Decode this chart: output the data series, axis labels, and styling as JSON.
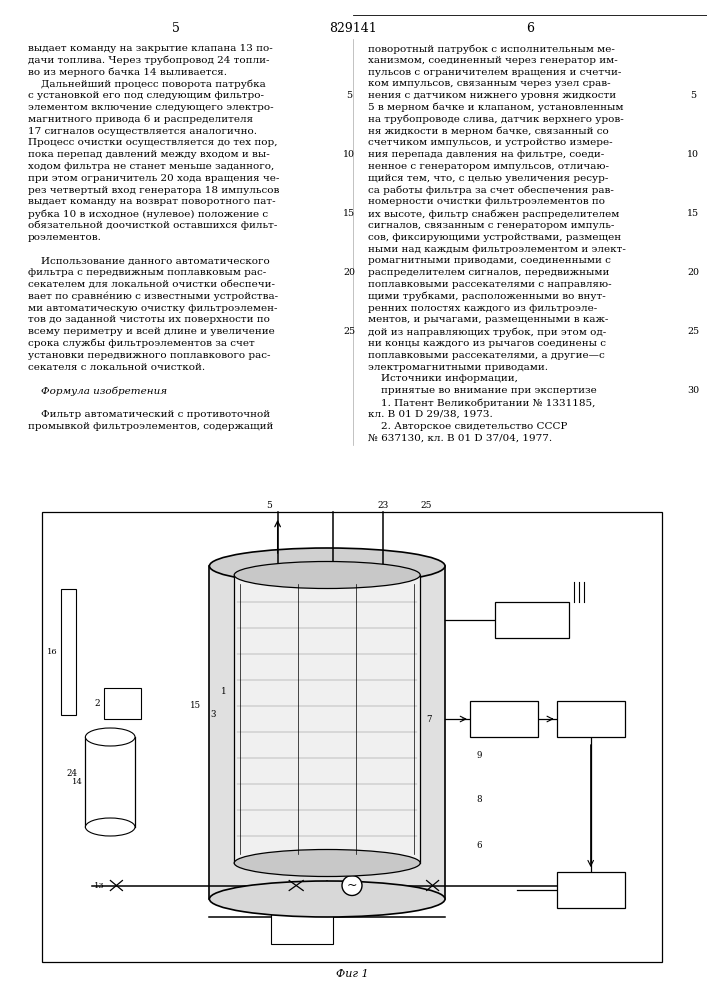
{
  "page_width": 7.07,
  "page_height": 10.0,
  "left_col_lines": [
    "выдает команду на закрытие клапана 13 по-",
    "дачи топлива. Через трубопровод 24 топли-",
    "во из мерного бачка 14 выливается.",
    "    Дальнейший процесс поворота патрубка",
    "с установкой его под следующим фильтро-",
    "элементом включение следующего электро-",
    "магнитного привода 6 и распределителя",
    "17 сигналов осуществляется аналогично.",
    "Процесс очистки осуществляется до тех пор,",
    "пока перепад давлений между входом и вы-",
    "ходом фильтра не станет меньше заданного,",
    "при этом ограничитель 20 хода вращения че-",
    "рез четвертый вход генератора 18 импульсов",
    "выдает команду на возврат поворотного пат-",
    "рубка 10 в исходное (нулевое) положение с",
    "обязательной доочисткой оставшихся фильт-",
    "роэлементов.",
    "",
    "    Использование данного автоматического",
    "фильтра с передвижным поплавковым рас-",
    "секателем для локальной очистки обеспечи-",
    "вает по сравне́нию с известными устройства-",
    "ми автоматическую очистку фильтроэлемен-",
    "тов до заданной чистоты их поверхности по",
    "всему периметру и всей длине и увеличение",
    "срока службы фильтроэлементов за счет",
    "установки передвижного поплавкового рас-",
    "секателя с локальной очисткой.",
    "",
    "    Формула изобретения",
    "",
    "    Фильтр автоматический с противоточной",
    "промывкой фильтроэлементов, содержащий"
  ],
  "right_col_lines": [
    "поворотный патрубок с исполнительным ме-",
    "ханизмом, соединенный через генератор им-",
    "пульсов с ограничителем вращения и счетчи-",
    "ком импульсов, связанным через узел срав-",
    "нения с датчиком нижнего уровня жидкости",
    "5 в мерном бачке и клапаном, установленным",
    "на трубопроводе слива, датчик верхнего уров-",
    "ня жидкости в мерном бачке, связанный со",
    "счетчиком импульсов, и устройство измере-",
    "ния перепада давления на фильтре, соеди-",
    "ненное с генератором импульсов, отличаю-",
    "щийся тем, что, с целью увеличения ресур-",
    "са работы фильтра за счет обеспечения рав-",
    "номерности очистки фильтроэлементов по",
    "их высоте, фильтр снабжен распределителем",
    "сигналов, связанным с генератором импуль-",
    "сов, фиксирующими устройствами, размещен",
    "ными над каждым фильтроэлементом и элект-",
    "ромагнитными приводами, соединенными с",
    "распределителем сигналов, передвижными",
    "поплавковыми рассекателями с направляю-",
    "щими трубками, расположенными во внут-",
    "ренних полостях каждого из фильтроэле-",
    "ментов, и рычагами, размещенными в каж-",
    "дой из направляющих трубок, при этом од-",
    "ни концы каждого из рычагов соединены с",
    "поплавковыми рассекателями, а другие—с",
    "электромагнитными приводами.",
    "    Источники информации,",
    "    принятые во внимание при экспертизе",
    "    1. Патент Великобритании № 1331185,",
    "кл. B 01 D 29/38, 1973.",
    "    2. Авторское свидетельство СССР",
    "№ 637130, кл. B 01 D 37/04, 1977."
  ],
  "italic_keyword": "Формула",
  "caption": "Фиг 1"
}
